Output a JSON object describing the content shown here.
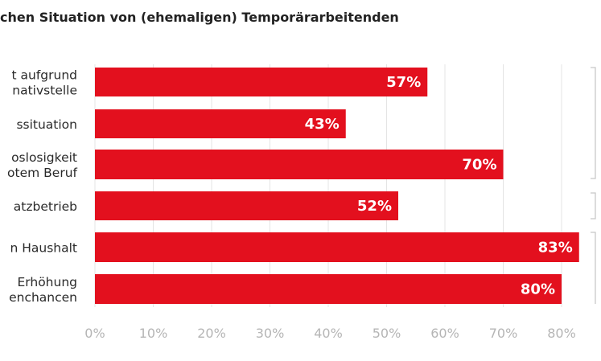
{
  "title": "chen Situation von (ehemaligen) Temporärarbeitenden",
  "colors": {
    "bar": "#e3101e",
    "grid": "#e4e4e4",
    "bracket": "#c8c8c8",
    "tick": "#b5b5b5"
  },
  "chart_data": {
    "type": "bar",
    "orientation": "horizontal",
    "title": "chen Situation von (ehemaligen) Temporärarbeitenden",
    "categories": [
      [
        "t aufgrund",
        "nativstelle"
      ],
      [
        "ssituation"
      ],
      [
        "oslosigkeit",
        "otem Beruf"
      ],
      [
        "atzbetrieb"
      ],
      [
        "n Haushalt"
      ],
      [
        "Erhöhung",
        "enchancen"
      ]
    ],
    "values": [
      57,
      43,
      70,
      52,
      83,
      80
    ],
    "value_labels": [
      "57%",
      "43%",
      "70%",
      "52%",
      "83%",
      "80%"
    ],
    "xlim": [
      0,
      80
    ],
    "xticks": [
      "0%",
      "10%",
      "20%",
      "30%",
      "40%",
      "50%",
      "60%",
      "70%",
      "80%"
    ],
    "grid": true,
    "legend": "none"
  }
}
